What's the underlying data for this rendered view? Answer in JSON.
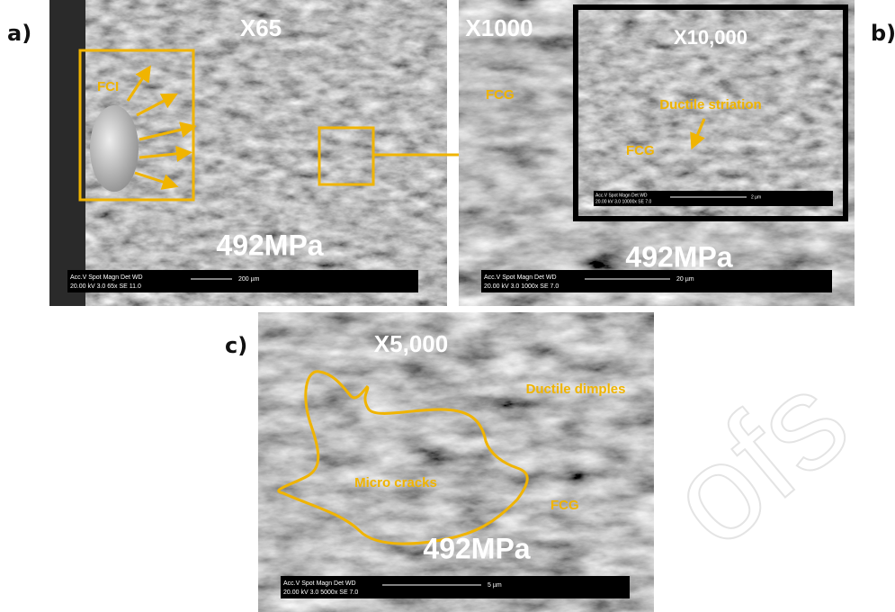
{
  "panels": [
    {
      "label": "a)",
      "magnification": "X65",
      "stress": "492MPa",
      "annotation": "FCI",
      "scalebar": {
        "header": "Acc.V   Spot  Magn   Det  WD",
        "params": "20.00 kV  3.0   65x    SE  11.0",
        "length": "200 µm"
      }
    },
    {
      "label": "b)",
      "magnification": "X1000",
      "stress": "492MPa",
      "annotation": "FCG",
      "scalebar": {
        "header": "Acc.V   Spot  Magn   Det  WD",
        "params": "20.00 kV  3.0   1000x  SE  7.0",
        "length": "20 µm"
      },
      "inset": {
        "magnification": "X10,000",
        "annotations": [
          "Ductile striation",
          "FCG"
        ],
        "scalebar": {
          "header": "Acc.V  Spot  Magn  Det  WD",
          "params": "20.00 kV 3.0  10000x  SE  7.0",
          "length": "2 µm"
        }
      }
    },
    {
      "label": "c)",
      "magnification": "X5,000",
      "stress": "492MPa",
      "annotations": [
        "Ductile dimples",
        "Micro cracks",
        "FCG"
      ],
      "scalebar": {
        "header": "Acc.V   Spot  Magn   Det  WD",
        "params": "20.00 kV  3.0   5000x  SE  7.0",
        "length": "5 µm"
      }
    }
  ],
  "watermark": "ofs"
}
